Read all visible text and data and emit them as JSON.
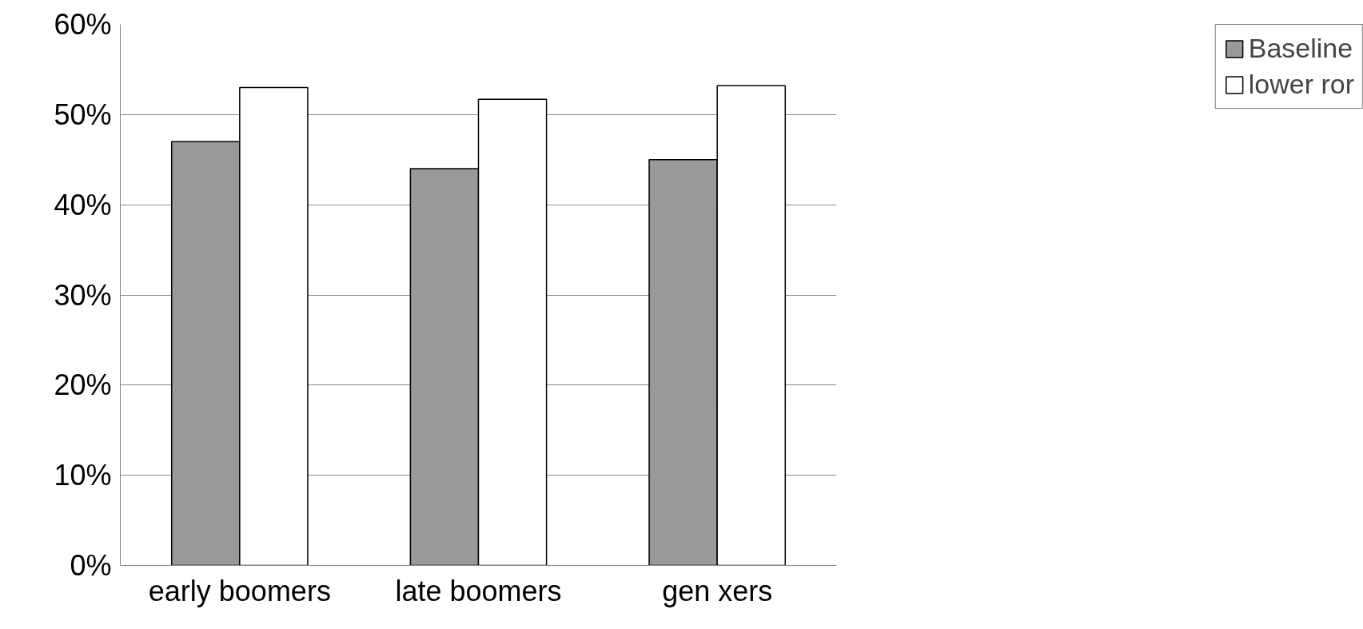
{
  "chart_data": {
    "type": "bar",
    "categories": [
      "early boomers",
      "late boomers",
      "gen xers"
    ],
    "series": [
      {
        "name": "Baseline",
        "color": "#999999",
        "values": [
          47,
          44,
          45
        ]
      },
      {
        "name": "lower ror",
        "color": "#ffffff",
        "values": [
          53,
          51.7,
          53.2
        ]
      }
    ],
    "ylim": [
      0,
      60
    ],
    "yticks": [
      {
        "value": 0,
        "label": "0%"
      },
      {
        "value": 10,
        "label": "10%"
      },
      {
        "value": 20,
        "label": "20%"
      },
      {
        "value": 30,
        "label": "30%"
      },
      {
        "value": 40,
        "label": "40%"
      },
      {
        "value": 50,
        "label": "50%"
      },
      {
        "value": 60,
        "label": "60%"
      }
    ],
    "grid": "y",
    "legend": "right"
  }
}
